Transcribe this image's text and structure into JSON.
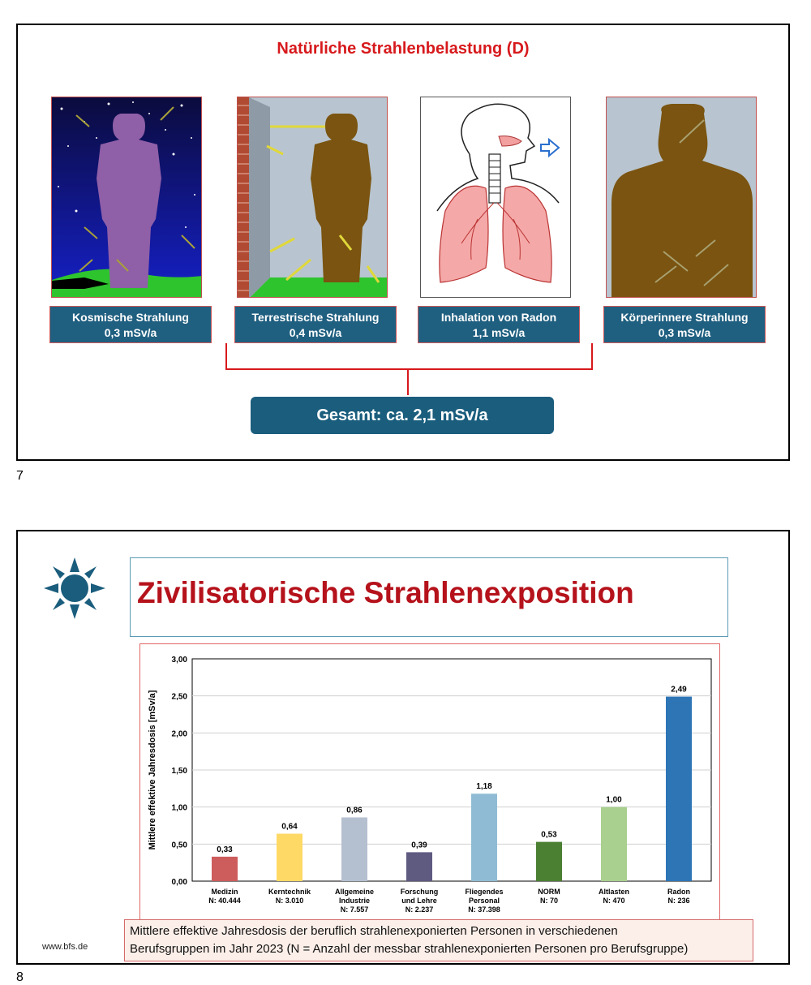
{
  "slide7": {
    "page_number": "7",
    "title": "Natürliche Strahlenbelastung (D)",
    "panels": [
      {
        "name": "Kosmische Strahlung",
        "value": "0,3 mSv/a",
        "icon": "cosmic-radiation-figure"
      },
      {
        "name": "Terrestrische Strahlung",
        "value": "0,4 mSv/a",
        "icon": "terrestrial-radiation-figure"
      },
      {
        "name": "Inhalation von Radon",
        "value": "1,1 mSv/a",
        "icon": "lungs-radon-inhalation"
      },
      {
        "name": "Körperinnere Strahlung",
        "value": "0,3 mSv/a",
        "icon": "internal-radiation-figure"
      }
    ],
    "total": "Gesamt: ca. 2,1 mSv/a",
    "colors": {
      "title": "#d7191c",
      "box": "#1f5f80",
      "bracket": "#d7191c"
    }
  },
  "slide8": {
    "page_number": "8",
    "title": "Zivilisatorische Strahlenexposition",
    "source": "www.bfs.de",
    "caption_line1": "Mittlere effektive Jahresdosis der beruflich strahlenexponierten Personen in verschiedenen",
    "caption_line2": "Berufsgruppen im Jahr 2023 (N = Anzahl der messbar strahlenexponierten Personen pro Berufsgruppe)",
    "colors": {
      "title": "#b5121b",
      "sun": "#1a5d7d"
    }
  },
  "chart_data": {
    "type": "bar",
    "ylabel": "Mittlere effektive Jahresdosis [mSv/a]",
    "ylim": [
      0,
      3
    ],
    "yticks": [
      "0,00",
      "0,50",
      "1,00",
      "1,50",
      "2,00",
      "2,50",
      "3,00"
    ],
    "grid": true,
    "categories": [
      {
        "line1": "Medizin",
        "line2": "N: 40.444",
        "line3": ""
      },
      {
        "line1": "Kerntechnik",
        "line2": "N: 3.010",
        "line3": ""
      },
      {
        "line1": "Allgemeine",
        "line2": "Industrie",
        "line3": "N: 7.557"
      },
      {
        "line1": "Forschung",
        "line2": "und Lehre",
        "line3": "N: 2.237"
      },
      {
        "line1": "Fliegendes",
        "line2": "Personal",
        "line3": "N: 37.398"
      },
      {
        "line1": "NORM",
        "line2": "N: 70",
        "line3": ""
      },
      {
        "line1": "Altlasten",
        "line2": "N: 470",
        "line3": ""
      },
      {
        "line1": "Radon",
        "line2": "N: 236",
        "line3": ""
      }
    ],
    "values": [
      0.33,
      0.64,
      0.86,
      0.39,
      1.18,
      0.53,
      1.0,
      2.49
    ],
    "value_labels": [
      "0,33",
      "0,64",
      "0,86",
      "0,39",
      "1,18",
      "0,53",
      "1,00",
      "2,49"
    ],
    "bar_colors": [
      "#cd5c5c",
      "#ffd966",
      "#b4c0d0",
      "#5e5a80",
      "#8fbcd4",
      "#4b7f32",
      "#a9d08e",
      "#2e75b6"
    ]
  }
}
